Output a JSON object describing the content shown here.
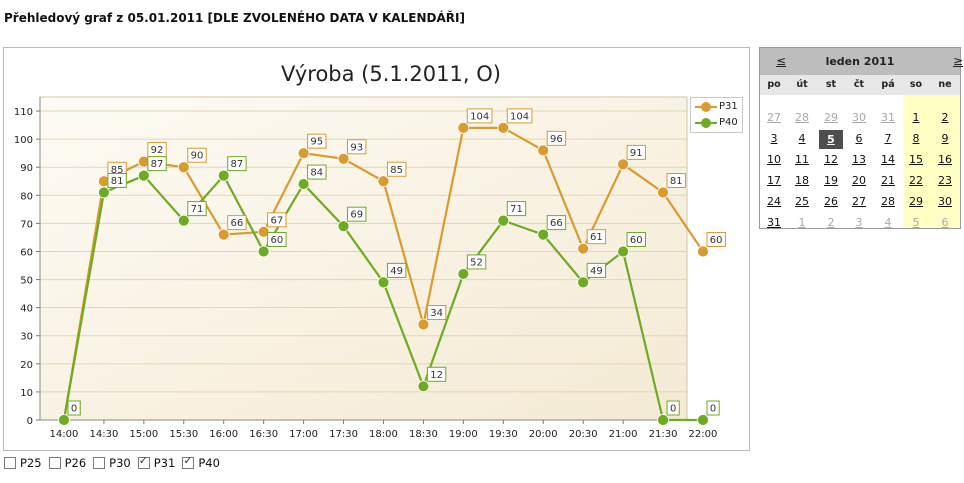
{
  "page": {
    "heading": "Přehledový graf z 05.01.2011 [DLE ZVOLENÉHO DATA V KALENDÁŘI]"
  },
  "chart_data": {
    "type": "line",
    "title": "Výroba (5.1.2011, O)",
    "xlabel": "",
    "ylabel": "",
    "categories": [
      "14:00",
      "14:30",
      "15:00",
      "15:30",
      "16:00",
      "16:30",
      "17:00",
      "17:30",
      "18:00",
      "18:30",
      "19:00",
      "19:30",
      "20:00",
      "20:30",
      "21:00",
      "21:30",
      "22:00"
    ],
    "ylim": [
      0,
      115
    ],
    "yticks": [
      0,
      10,
      20,
      30,
      40,
      50,
      60,
      70,
      80,
      90,
      100,
      110
    ],
    "grid": true,
    "legend": "top-right",
    "series": [
      {
        "name": "P31",
        "color": "#d99a2e",
        "values": [
          0,
          85,
          92,
          90,
          66,
          67,
          95,
          93,
          85,
          34,
          104,
          104,
          96,
          61,
          91,
          81,
          60
        ]
      },
      {
        "name": "P40",
        "color": "#6eaa22",
        "values": [
          0,
          81,
          87,
          71,
          87,
          60,
          84,
          69,
          49,
          12,
          52,
          71,
          66,
          49,
          60,
          0,
          0
        ]
      }
    ]
  },
  "calendar": {
    "prev": "≤",
    "next": "≥",
    "title": "leden 2011",
    "weekdays": [
      "po",
      "út",
      "st",
      "čt",
      "pá",
      "so",
      "ne"
    ],
    "weeks": [
      [
        "27",
        "28",
        "29",
        "30",
        "31",
        "1",
        "2"
      ],
      [
        "3",
        "4",
        "5",
        "6",
        "7",
        "8",
        "9"
      ],
      [
        "10",
        "11",
        "12",
        "13",
        "14",
        "15",
        "16"
      ],
      [
        "17",
        "18",
        "19",
        "20",
        "21",
        "22",
        "23"
      ],
      [
        "24",
        "25",
        "26",
        "27",
        "28",
        "29",
        "30"
      ],
      [
        "31",
        "1",
        "2",
        "3",
        "4",
        "5",
        "6"
      ]
    ],
    "selected": "5"
  },
  "checkboxes": [
    {
      "label": "P25",
      "checked": false
    },
    {
      "label": "P26",
      "checked": false
    },
    {
      "label": "P30",
      "checked": false
    },
    {
      "label": "P31",
      "checked": true
    },
    {
      "label": "P40",
      "checked": true
    }
  ]
}
